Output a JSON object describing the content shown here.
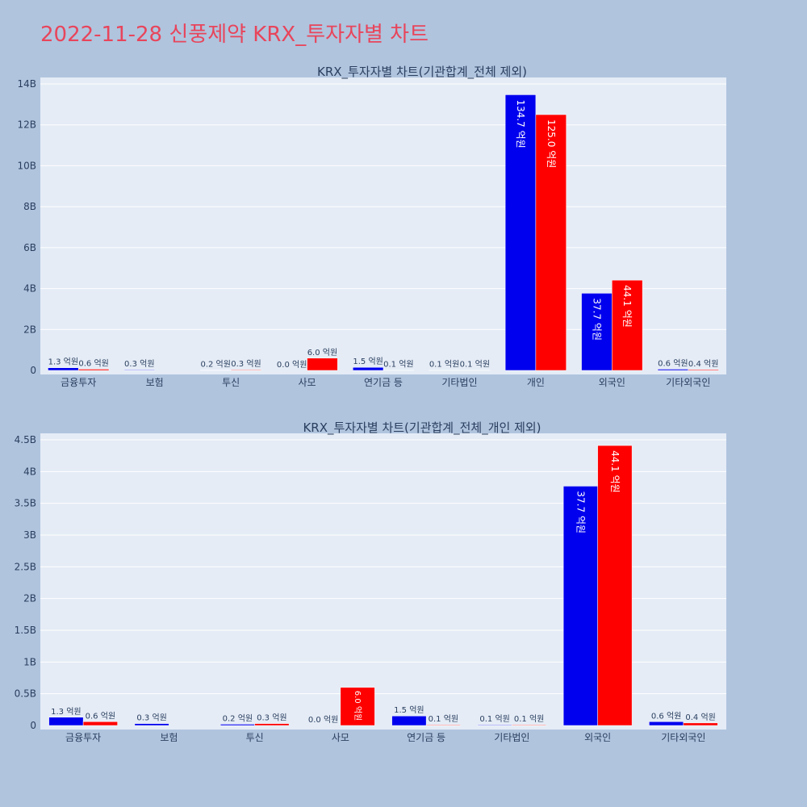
{
  "page": {
    "title": "2022-11-28 신풍제약 KRX_투자자별 차트"
  },
  "colors": {
    "background": "#b0c4de",
    "plot_bg": "#e5ecf6",
    "grid": "#ffffff",
    "title": "#e8455b",
    "series_blue": "#0000ee",
    "series_red": "#ff0000",
    "axis_text": "#2a3f5f"
  },
  "chart_data": [
    {
      "type": "bar",
      "title": "KRX_투자자별 차트(기관합계_전체 제외)",
      "categories": [
        "금융투자",
        "보험",
        "투신",
        "사모",
        "연기금 등",
        "기타법인",
        "개인",
        "외국인",
        "기타외국인"
      ],
      "yticks": [
        "0",
        "2B",
        "4B",
        "6B",
        "8B",
        "10B",
        "12B",
        "14B"
      ],
      "ylim": [
        0,
        14000000000
      ],
      "series": [
        {
          "color": "#0000ee",
          "values": [
            130000000,
            30000000,
            20000000,
            0,
            150000000,
            10000000,
            13470000000,
            3770000000,
            60000000
          ],
          "labels": [
            "1.3 억원",
            "0.3 억원",
            "0.2 억원",
            "0.0 억원",
            "1.5 억원",
            "0.1 억원",
            "134.7 억원",
            "37.7 억원",
            "0.6 억원"
          ]
        },
        {
          "color": "#ff0000",
          "values": [
            60000000,
            null,
            30000000,
            600000000,
            10000000,
            10000000,
            12500000000,
            4410000000,
            40000000
          ],
          "labels": [
            "0.6 억원",
            "",
            "0.3 억원",
            "6.0 억원",
            "0.1 억원",
            "0.1 억원",
            "125.0 억원",
            "44.1 억원",
            "0.4 억원"
          ]
        }
      ]
    },
    {
      "type": "bar",
      "title": "KRX_투자자별 차트(기관합계_전체_개인 제외)",
      "categories": [
        "금융투자",
        "보험",
        "투신",
        "사모",
        "연기금 등",
        "기타법인",
        "외국인",
        "기타외국인"
      ],
      "yticks": [
        "0",
        "0.5B",
        "1B",
        "1.5B",
        "2B",
        "2.5B",
        "3B",
        "3.5B",
        "4B",
        "4.5B"
      ],
      "ylim": [
        0,
        4500000000
      ],
      "series": [
        {
          "color": "#0000ee",
          "values": [
            130000000,
            30000000,
            20000000,
            0,
            150000000,
            10000000,
            3770000000,
            60000000
          ],
          "labels": [
            "1.3 억원",
            "0.3 억원",
            "0.2 억원",
            "0.0 억원",
            "1.5 억원",
            "0.1 억원",
            "37.7 억원",
            "0.6 억원"
          ]
        },
        {
          "color": "#ff0000",
          "values": [
            60000000,
            null,
            30000000,
            600000000,
            10000000,
            10000000,
            4410000000,
            40000000
          ],
          "labels": [
            "0.6 억원",
            "",
            "0.3 억원",
            "6.0 억원",
            "0.1 억원",
            "0.1 억원",
            "44.1 억원",
            "0.4 억원"
          ]
        }
      ]
    }
  ]
}
